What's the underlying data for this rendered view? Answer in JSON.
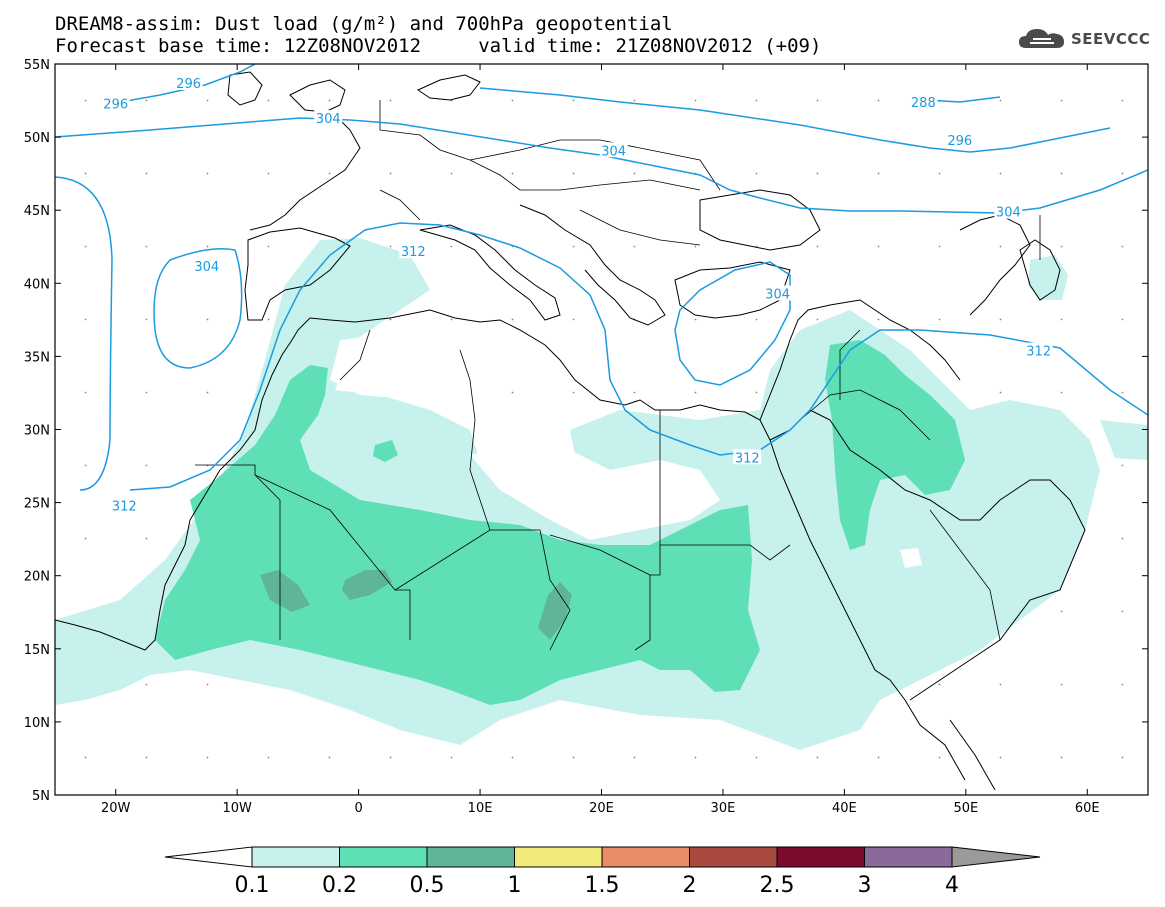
{
  "header": {
    "line1": "DREAM8-assim: Dust load (g/m²) and 700hPa geopotential",
    "line2": "Forecast base time: 12Z08NOV2012     valid time: 21Z08NOV2012 (+09)"
  },
  "logo": {
    "text": "SEEVCCC",
    "icon": "cloud-icon"
  },
  "axes": {
    "lon_range": [
      -25,
      65
    ],
    "lat_range": [
      5,
      55
    ],
    "lat_labels": [
      "55N",
      "50N",
      "45N",
      "40N",
      "35N",
      "30N",
      "25N",
      "20N",
      "15N",
      "10N",
      "5N"
    ],
    "lon_labels": [
      "20W",
      "10W",
      "0",
      "10E",
      "20E",
      "30E",
      "40E",
      "50E",
      "60E"
    ]
  },
  "contours": {
    "color": "#1b9be0",
    "labels": [
      {
        "text": "296",
        "lon": -20,
        "lat": 52.3
      },
      {
        "text": "296",
        "lon": -14,
        "lat": 53.7
      },
      {
        "text": "304",
        "lon": -2.5,
        "lat": 51.3
      },
      {
        "text": "288",
        "lon": 46.5,
        "lat": 52.4
      },
      {
        "text": "304",
        "lon": 21,
        "lat": 49.1
      },
      {
        "text": "296",
        "lon": 49.5,
        "lat": 49.8
      },
      {
        "text": "304",
        "lon": -12.5,
        "lat": 41.2
      },
      {
        "text": "312",
        "lon": 4.5,
        "lat": 42.2
      },
      {
        "text": "304",
        "lon": 34.5,
        "lat": 39.3
      },
      {
        "text": "304",
        "lon": 53.5,
        "lat": 44.9
      },
      {
        "text": "312",
        "lon": 56,
        "lat": 35.4
      },
      {
        "text": "312",
        "lon": 32,
        "lat": 28.1
      },
      {
        "text": "312",
        "lon": -19.3,
        "lat": 24.8
      }
    ]
  },
  "colorbar": {
    "colors": [
      "#c6f1ec",
      "#5fdfb5",
      "#5fb697",
      "#f3ea7c",
      "#e88d65",
      "#a84a3e",
      "#7c0a2a",
      "#8a6a9a"
    ],
    "end_low": "#ffffff",
    "end_high": "#9a9a9a",
    "labels": [
      "0.1",
      "0.2",
      "0.5",
      "1",
      "1.5",
      "2",
      "2.5",
      "3",
      "4"
    ]
  }
}
